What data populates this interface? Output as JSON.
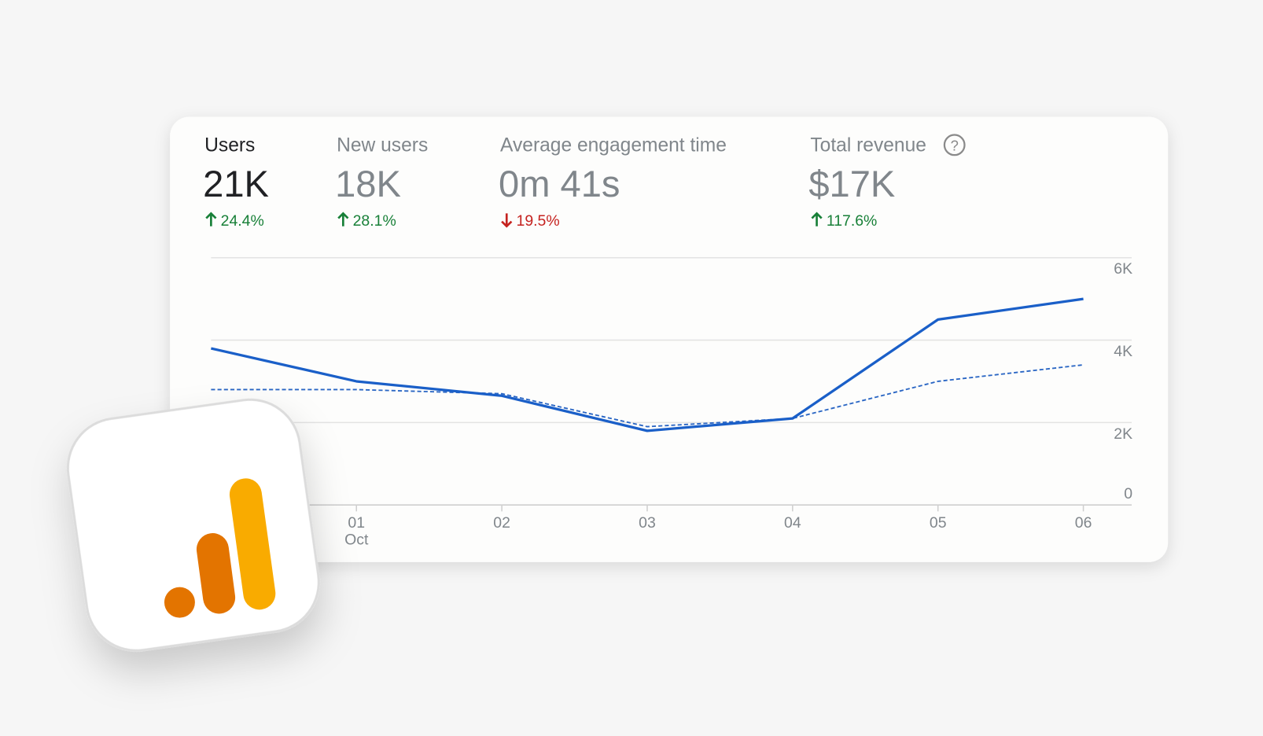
{
  "metrics": [
    {
      "label": "Users",
      "value": "21K",
      "change": "24.4%",
      "direction": "up"
    },
    {
      "label": "New users",
      "value": "18K",
      "change": "28.1%",
      "direction": "up"
    },
    {
      "label": "Average engagement time",
      "value": "0m 41s",
      "change": "19.5%",
      "direction": "down"
    },
    {
      "label": "Total revenue",
      "value": "$17K",
      "change": "117.6%",
      "direction": "up"
    }
  ],
  "selected_metric": 0,
  "chart_data": {
    "type": "line",
    "categories": [
      null,
      "01",
      "02",
      "03",
      "04",
      "05",
      "06"
    ],
    "category_sublabels": [
      null,
      "Oct",
      null,
      null,
      null,
      null,
      null
    ],
    "series": [
      {
        "color": "#1a5fc8",
        "style": "solid",
        "values": [
          3800,
          3000,
          2650,
          1800,
          2100,
          4500,
          5000
        ]
      },
      {
        "color": "#2a66c4",
        "style": "dashed",
        "values": [
          2800,
          2800,
          2700,
          1900,
          2100,
          3000,
          3400
        ]
      }
    ],
    "ylim": [
      0,
      6000
    ],
    "yticks": [
      0,
      {
        "value": 2000,
        "label": "2K"
      },
      {
        "value": 4000,
        "label": "4K"
      },
      {
        "value": 6000,
        "label": "6K"
      }
    ],
    "grid": true
  }
}
